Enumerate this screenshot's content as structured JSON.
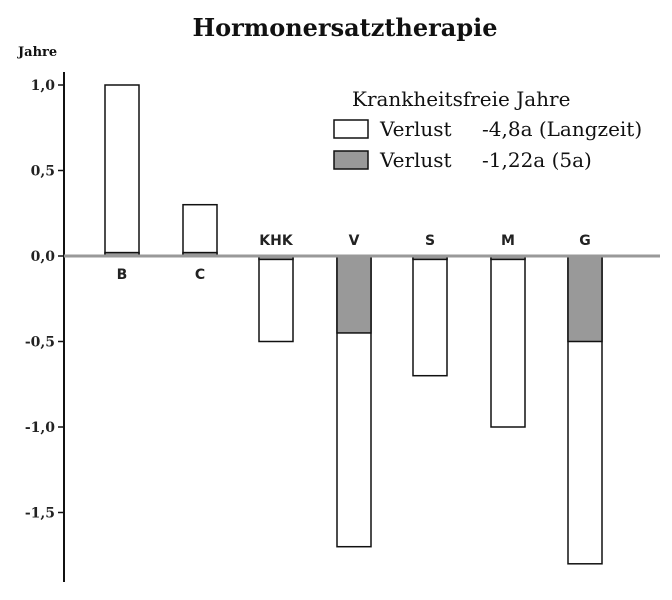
{
  "chart_data": {
    "type": "bar",
    "title": "Hormonersatztherapie",
    "ylabel": "Jahre",
    "xlabel": "",
    "ylim": [
      -1.9,
      1.05
    ],
    "yticks": [
      1.0,
      0.5,
      0.0,
      -0.5,
      -1.0,
      -1.5
    ],
    "ytick_labels": [
      "1,0",
      "0,5",
      "0,0",
      "-0,5",
      "-1,0",
      "-1,5"
    ],
    "categories": [
      "B",
      "C",
      "KHK",
      "V",
      "S",
      "M",
      "G"
    ],
    "series": [
      {
        "name": "Verlust -4,8a (Langzeit)",
        "color": "#ffffff",
        "values": [
          1.0,
          0.3,
          -0.5,
          -1.7,
          -0.7,
          -1.0,
          -1.8
        ]
      },
      {
        "name": "Verlust -1,22a (5a)",
        "color": "#999999",
        "values": [
          0.02,
          0.02,
          -0.02,
          -0.45,
          -0.02,
          -0.02,
          -0.5
        ]
      }
    ],
    "legend": {
      "title": "Krankheitsfreie Jahre",
      "placement": "top-right",
      "entries": [
        {
          "label": "Verlust",
          "value": "-4,8a (Langzeit)",
          "color": "#ffffff"
        },
        {
          "label": "Verlust",
          "value": "-1,22a (5a)",
          "color": "#999999"
        }
      ]
    }
  }
}
